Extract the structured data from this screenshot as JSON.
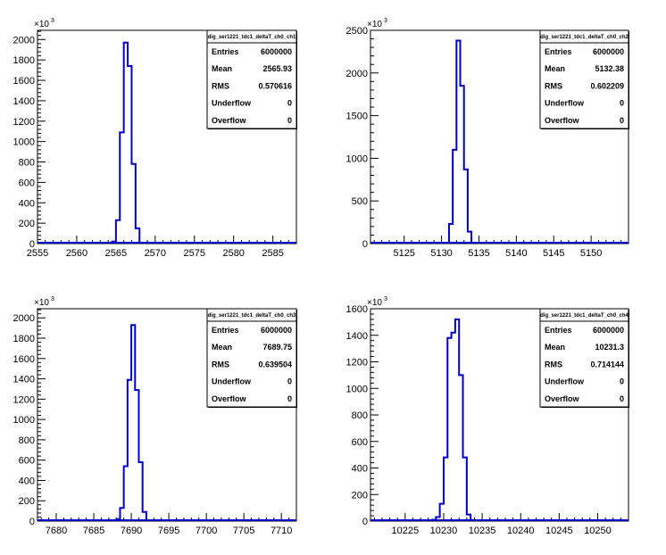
{
  "chart_data": [
    {
      "type": "bar",
      "histogram": true,
      "color": "#0000cc",
      "x_ticks": [
        2555,
        2560,
        2565,
        2570,
        2575,
        2580,
        2585
      ],
      "xlim": [
        2555,
        2588
      ],
      "bin_width": 0.5,
      "y_ticks": [
        0,
        200,
        400,
        600,
        800,
        1000,
        1200,
        1400,
        1600,
        1800,
        2000
      ],
      "ylim": [
        0,
        2090
      ],
      "y_multiplier": "×10",
      "y_multiplier_exp": "3",
      "bins": [
        [
          2564.5,
          20
        ],
        [
          2565.0,
          230
        ],
        [
          2565.5,
          1090
        ],
        [
          2566.0,
          1970
        ],
        [
          2566.5,
          1740
        ],
        [
          2567.0,
          780
        ],
        [
          2567.5,
          150
        ],
        [
          2568.0,
          8
        ]
      ],
      "stats": {
        "title": "dig_ser1221_tdc1_deltaT_ch0_ch1",
        "rows": [
          {
            "label": "Entries",
            "value": "6000000"
          },
          {
            "label": "Mean",
            "value": "2565.93"
          },
          {
            "label": "RMS",
            "value": "0.570616"
          },
          {
            "label": "Underflow",
            "value": "0"
          },
          {
            "label": "Overflow",
            "value": "0"
          }
        ]
      }
    },
    {
      "type": "bar",
      "histogram": true,
      "color": "#0000cc",
      "x_ticks": [
        5125,
        5130,
        5135,
        5140,
        5145,
        5150
      ],
      "xlim": [
        5120.5,
        5155
      ],
      "bin_width": 0.5,
      "y_ticks": [
        0,
        500,
        1000,
        1500,
        2000,
        2500
      ],
      "ylim": [
        0,
        2500
      ],
      "y_multiplier": "×10",
      "y_multiplier_exp": "3",
      "bins": [
        [
          5130.5,
          10
        ],
        [
          5131.0,
          230
        ],
        [
          5131.5,
          1100
        ],
        [
          5132.0,
          2380
        ],
        [
          5132.5,
          1850
        ],
        [
          5133.0,
          870
        ],
        [
          5133.5,
          140
        ],
        [
          5134.0,
          10
        ]
      ],
      "stats": {
        "title": "dig_ser1221_tdc1_deltaT_ch0_ch2",
        "rows": [
          {
            "label": "Entries",
            "value": "6000000"
          },
          {
            "label": "Mean",
            "value": "5132.38"
          },
          {
            "label": "RMS",
            "value": "0.602209"
          },
          {
            "label": "Underflow",
            "value": "0"
          },
          {
            "label": "Overflow",
            "value": "0"
          }
        ]
      }
    },
    {
      "type": "bar",
      "histogram": true,
      "color": "#0000cc",
      "x_ticks": [
        7680,
        7685,
        7690,
        7695,
        7700,
        7705,
        7710
      ],
      "xlim": [
        7677.5,
        7712
      ],
      "bin_width": 0.5,
      "y_ticks": [
        0,
        200,
        400,
        600,
        800,
        1000,
        1200,
        1400,
        1600,
        1800,
        2000
      ],
      "ylim": [
        0,
        2090
      ],
      "y_multiplier": "×10",
      "y_multiplier_exp": "3",
      "bins": [
        [
          7688.0,
          20
        ],
        [
          7688.5,
          130
        ],
        [
          7689.0,
          540
        ],
        [
          7689.5,
          1390
        ],
        [
          7690.0,
          1930
        ],
        [
          7690.5,
          1290
        ],
        [
          7691.0,
          580
        ],
        [
          7691.5,
          90
        ],
        [
          7692.0,
          8
        ]
      ],
      "stats": {
        "title": "dig_ser1221_tdc1_deltaT_ch0_ch3",
        "rows": [
          {
            "label": "Entries",
            "value": "6000000"
          },
          {
            "label": "Mean",
            "value": "7689.75"
          },
          {
            "label": "RMS",
            "value": "0.639504"
          },
          {
            "label": "Underflow",
            "value": "0"
          },
          {
            "label": "Overflow",
            "value": "0"
          }
        ]
      }
    },
    {
      "type": "bar",
      "histogram": true,
      "color": "#0000cc",
      "x_ticks": [
        10225,
        10230,
        10235,
        10240,
        10245,
        10250
      ],
      "xlim": [
        10220.5,
        10254
      ],
      "bin_width": 0.5,
      "y_ticks": [
        0,
        200,
        400,
        600,
        800,
        1000,
        1200,
        1400,
        1600
      ],
      "ylim": [
        0,
        1600
      ],
      "y_multiplier": "×10",
      "y_multiplier_exp": "3",
      "bins": [
        [
          10228.5,
          10
        ],
        [
          10229.0,
          30
        ],
        [
          10229.5,
          130
        ],
        [
          10230.0,
          480
        ],
        [
          10230.5,
          1380
        ],
        [
          10231.0,
          1420
        ],
        [
          10231.5,
          1520
        ],
        [
          10232.0,
          1100
        ],
        [
          10232.5,
          480
        ],
        [
          10233.0,
          50
        ],
        [
          10233.5,
          8
        ]
      ],
      "stats": {
        "title": "dig_ser1221_tdc1_deltaT_ch0_ch4",
        "rows": [
          {
            "label": "Entries",
            "value": "6000000"
          },
          {
            "label": "Mean",
            "value": "10231.3"
          },
          {
            "label": "RMS",
            "value": "0.714144"
          },
          {
            "label": "Underflow",
            "value": "0"
          },
          {
            "label": "Overflow",
            "value": "0"
          }
        ]
      }
    }
  ]
}
